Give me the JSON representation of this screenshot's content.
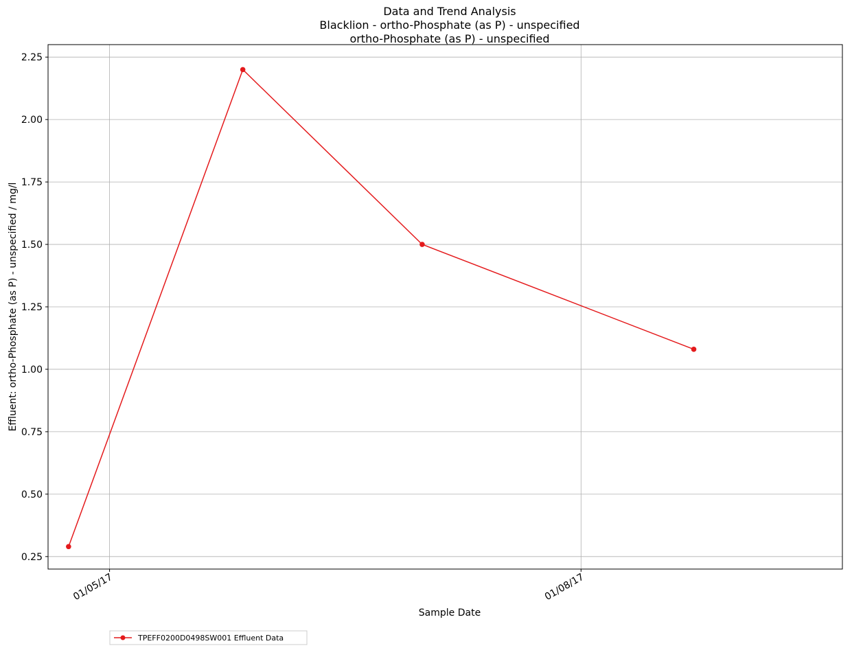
{
  "chart_data": {
    "type": "line",
    "title": "Data and Trend Analysis",
    "subtitle_1": "Blacklion - ortho-Phosphate (as P) - unspecified",
    "subtitle_2": "ortho-Phosphate (as P) - unspecified",
    "xlabel": "Sample Date",
    "ylabel": "Effluent: ortho-Phosphate (as P) - unspecified / mg/l",
    "x_tick_labels": [
      {
        "date": "2017-05-01",
        "label": "01/05/17"
      },
      {
        "date": "2017-08-01",
        "label": "01/08/17"
      }
    ],
    "y_ticks": [
      0.25,
      0.5,
      0.75,
      1.0,
      1.25,
      1.5,
      1.75,
      2.0,
      2.25
    ],
    "y_tick_labels": [
      "0.25",
      "0.50",
      "0.75",
      "1.00",
      "1.25",
      "1.50",
      "1.75",
      "2.00",
      "2.25"
    ],
    "xlim": [
      "2017-04-19",
      "2017-09-21"
    ],
    "ylim": [
      0.2,
      2.3
    ],
    "grid": true,
    "legend_position": "bottom-left, below plot",
    "series": [
      {
        "name": "TPEFF0200D0498SW001 Effluent Data",
        "color": "#e41a1c",
        "marker": "circle",
        "points": [
          {
            "x": "2017-04-23",
            "y": 0.29
          },
          {
            "x": "2017-05-27",
            "y": 2.2
          },
          {
            "x": "2017-07-01",
            "y": 1.5
          },
          {
            "x": "2017-08-23",
            "y": 1.08
          }
        ]
      }
    ]
  }
}
